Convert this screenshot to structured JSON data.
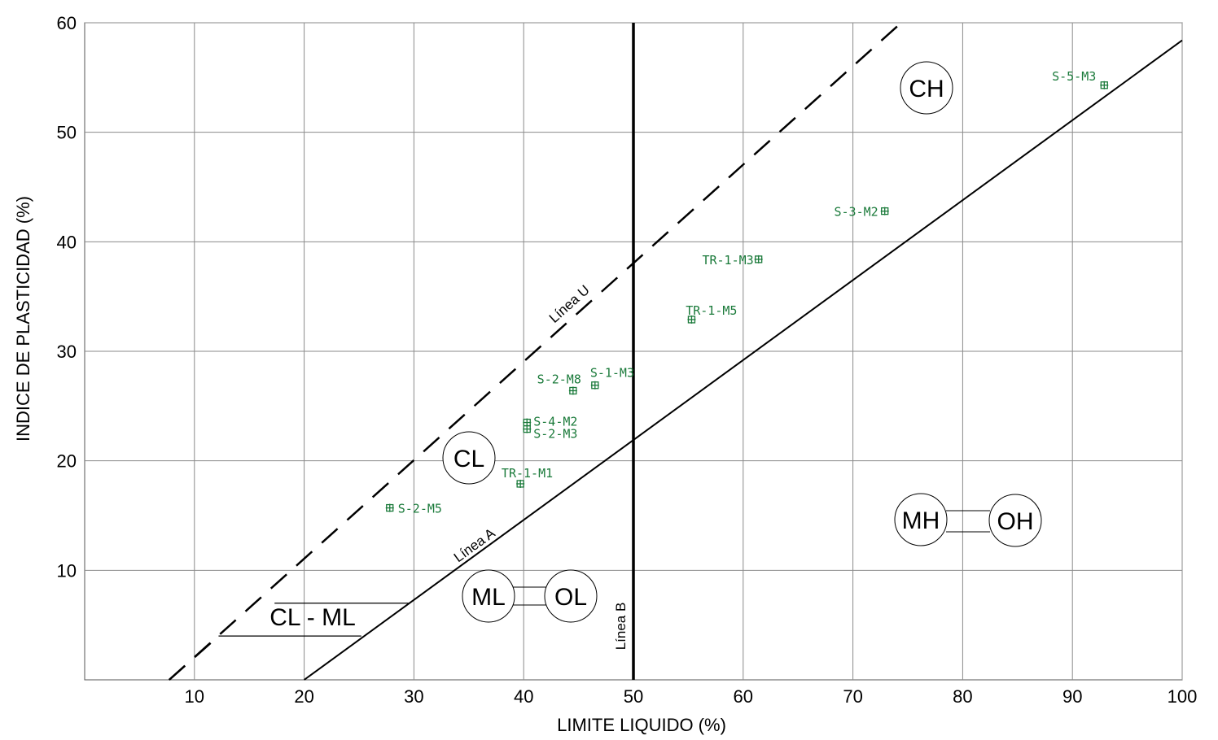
{
  "chart_data": {
    "type": "scatter",
    "xlabel": "LIMITE LIQUIDO (%)",
    "ylabel": "INDICE DE PLASTICIDAD (%)",
    "xlim": [
      0,
      100
    ],
    "ylim": [
      0,
      60
    ],
    "x_ticks": [
      10,
      20,
      30,
      40,
      50,
      60,
      70,
      80,
      90,
      100
    ],
    "y_ticks": [
      10,
      20,
      30,
      40,
      50,
      60
    ],
    "grid": true,
    "point_color": "#1a7a3a",
    "points": [
      {
        "label": "S-5-M3",
        "x": 92.9,
        "y": 54.3
      },
      {
        "label": "S-3-M2",
        "x": 72.9,
        "y": 42.8
      },
      {
        "label": "TR-1-M3",
        "x": 61.4,
        "y": 38.4
      },
      {
        "label": "TR-1-M5",
        "x": 55.3,
        "y": 32.9
      },
      {
        "label": "S-1-M3",
        "x": 46.5,
        "y": 26.9
      },
      {
        "label": "S-2-M8",
        "x": 44.5,
        "y": 26.4
      },
      {
        "label": "S-4-M2",
        "x": 40.3,
        "y": 23.5
      },
      {
        "label": "S-2-M3",
        "x": 40.3,
        "y": 22.9
      },
      {
        "label": "TR-1-M1",
        "x": 39.7,
        "y": 17.9
      },
      {
        "label": "S-2-M5",
        "x": 27.8,
        "y": 15.7
      }
    ],
    "lines": [
      {
        "name": "Línea A",
        "style": "solid",
        "from": [
          20,
          0
        ],
        "to": [
          100,
          58.4
        ]
      },
      {
        "name": "Línea U",
        "style": "dashed",
        "from": [
          7.7,
          0
        ],
        "to": [
          74.4,
          60
        ]
      },
      {
        "name": "Línea B",
        "style": "vertical",
        "x": 50
      }
    ],
    "regions": [
      {
        "label": "CH"
      },
      {
        "label": "CL"
      },
      {
        "label": "MH"
      },
      {
        "label": "OH"
      },
      {
        "label": "ML"
      },
      {
        "label": "OL"
      },
      {
        "label": "CL - ML"
      }
    ]
  }
}
